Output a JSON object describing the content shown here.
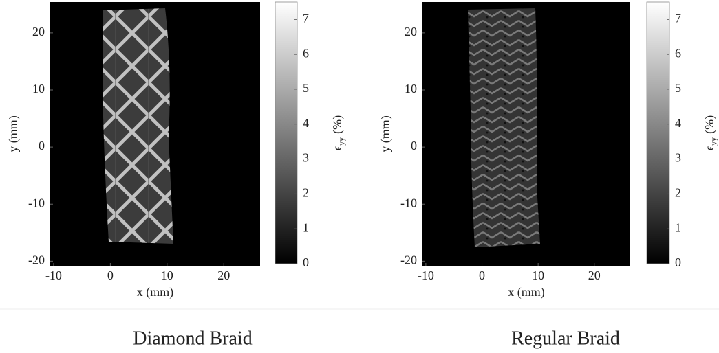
{
  "chart_data": [
    {
      "type": "heatmap",
      "xlabel": "x (mm)",
      "ylabel": "y (mm)",
      "xlim": [
        -10.6,
        26.4
      ],
      "ylim": [
        -20.8,
        25.4
      ],
      "xticks": [
        -10,
        0,
        10,
        20
      ],
      "yticks": [
        -20,
        -10,
        0,
        10,
        20
      ],
      "colorbar": {
        "clim": [
          0,
          7.5
        ],
        "ticks": [
          0,
          1,
          2,
          3,
          4,
          5,
          6,
          7
        ],
        "label_symbol": "ϵ",
        "label_subscript": "yy",
        "label_unit": "(%)",
        "colormap": "gray"
      },
      "caption": "Diamond Braid"
    },
    {
      "type": "heatmap",
      "xlabel": "x (mm)",
      "ylabel": "y (mm)",
      "xlim": [
        -10.6,
        26.4
      ],
      "ylim": [
        -20.8,
        25.4
      ],
      "xticks": [
        -10,
        0,
        10,
        20
      ],
      "yticks": [
        -20,
        -10,
        0,
        10,
        20
      ],
      "colorbar": {
        "clim": [
          0,
          7.5
        ],
        "ticks": [
          0,
          1,
          2,
          3,
          4,
          5,
          6,
          7
        ],
        "label_symbol": "ϵ",
        "label_subscript": "yy",
        "label_unit": "(%)",
        "colormap": "gray"
      },
      "caption": "Regular Braid"
    }
  ]
}
